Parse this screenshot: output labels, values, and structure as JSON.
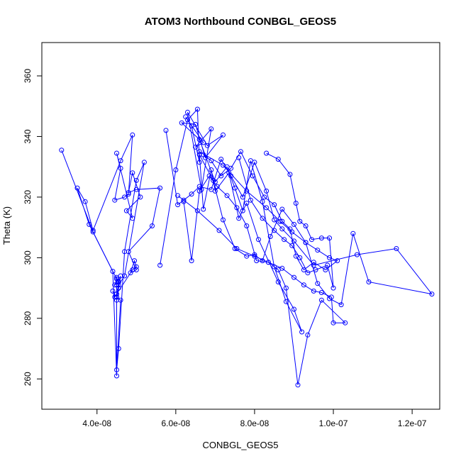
{
  "chart_data": {
    "type": "line",
    "title": "ATOM3 Northbound CONBGL_GEOS5",
    "xlabel": "CONBGL_GEOS5",
    "ylabel": "Theta (K)",
    "xlim": [
      2.6e-08,
      1.27e-07
    ],
    "ylim": [
      250,
      371
    ],
    "xticks": [
      4e-08,
      6e-08,
      8e-08,
      1e-07,
      1.2e-07
    ],
    "xtick_labels": [
      "4.0e-08",
      "6.0e-08",
      "8.0e-08",
      "1.0e-07",
      "1.2e-07"
    ],
    "yticks": [
      260,
      280,
      300,
      320,
      340,
      360
    ],
    "ytick_labels": [
      "260",
      "280",
      "300",
      "320",
      "340",
      "360"
    ],
    "series_color": "#0000ff",
    "marker": "open-circle",
    "grid": false,
    "series": [
      {
        "x": [
          3.1e-08,
          3.9e-08,
          4.5e-08,
          4.5e-08,
          4.6e-08,
          4.5e-08,
          4.55e-08,
          4.7e-08,
          5e-08,
          5.2e-08,
          4.7e-08,
          4.55e-08,
          4.5e-08,
          4.5e-08,
          4.4e-08,
          3.8e-08,
          3.5e-08,
          3.7e-08,
          3.9e-08,
          4.6e-08,
          4.9e-08,
          4.8e-08,
          4.7e-08,
          4.45e-08,
          4.6e-08,
          4.5e-08,
          4.9e-08,
          4.75e-08,
          5.1e-08,
          4.9e-08,
          4.8e-08,
          5e-08,
          5.6e-08,
          5.4e-08,
          4.8e-08,
          5e-08,
          4.85e-08,
          4.95e-08,
          5e-08,
          4.9e-08,
          4.5e-08,
          4.5e-08,
          4.55e-08,
          4.5e-08,
          4.45e-08,
          4.55e-08,
          4.6e-08,
          4.5e-08,
          4.5e-08,
          4.55e-08,
          4.55e-08,
          4.5e-08,
          4.45e-08,
          4.4e-08
        ],
        "y": [
          335.5,
          308.5,
          293,
          287,
          286,
          263,
          270,
          302,
          325.5,
          331.5,
          294,
          291,
          293.5,
          261,
          295.5,
          311,
          323,
          318.5,
          309,
          332,
          340.5,
          321,
          320,
          319,
          329.5,
          334.5,
          313,
          315.5,
          320,
          328,
          321.5,
          322.5,
          323,
          310.5,
          302,
          296,
          295,
          299,
          297,
          296,
          288,
          287,
          292,
          293,
          291,
          292,
          294,
          286,
          291,
          292,
          290,
          288,
          287,
          289
        ]
      },
      {
        "x": [
          5.6e-08,
          6e-08,
          6.3e-08,
          6.55e-08,
          6.6e-08,
          6.4e-08,
          6.25e-08,
          6.7e-08,
          6.5e-08,
          6.9e-08,
          6.65e-08,
          6.3e-08,
          6.8e-08,
          7.2e-08,
          6.75e-08,
          6.5e-08,
          6.15e-08,
          6.6e-08,
          7e-08,
          7.3e-08,
          7.5e-08,
          7.7e-08,
          7.9e-08,
          8.2e-08,
          8.5e-08,
          8.8e-08,
          9.2e-08,
          9e-08,
          8.6e-08,
          8.1e-08,
          7.8e-08,
          7.6e-08,
          7.35e-08,
          7e-08,
          6.9e-08,
          6.7e-08,
          6.6e-08,
          6.95e-08,
          7.2e-08,
          7.5e-08,
          7.8e-08,
          8e-08,
          8.2e-08,
          8.4e-08,
          8.7e-08,
          9e-08,
          9.3e-08,
          9.6e-08,
          9.9e-08,
          1.02e-07,
          1.05e-07,
          1.09e-07,
          1.25e-07,
          1.16e-07,
          1.06e-07,
          9.5e-08,
          9e-08,
          8.7e-08,
          8.5e-08,
          8.3e-08,
          8e-08,
          7.7e-08,
          7.4e-08,
          7.15e-08,
          6.9e-08,
          6.6e-08,
          6.4e-08,
          6.2e-08,
          6.05e-08,
          5.75e-08
        ],
        "y": [
          297.5,
          329,
          345.5,
          349,
          331.5,
          343.5,
          346.5,
          338,
          336.5,
          342.5,
          322.5,
          348,
          337,
          340.5,
          333,
          344,
          344.5,
          339,
          325,
          330,
          323,
          315.5,
          332,
          318.5,
          297,
          285.5,
          275.5,
          283,
          292,
          306,
          318,
          313,
          328,
          322,
          329,
          316,
          334,
          325.5,
          312.5,
          303,
          300.5,
          301,
          299,
          307,
          316,
          311,
          305,
          291.5,
          286.5,
          284.5,
          308,
          292,
          288,
          303,
          301,
          297.5,
          305.5,
          309.5,
          312.5,
          322,
          331.5,
          320,
          327,
          332.5,
          322.5,
          323.5,
          321,
          319,
          317.5,
          342
        ]
      },
      {
        "x": [
          6.05e-08,
          6.55e-08,
          7.1e-08,
          7.55e-08,
          8e-08,
          8.35e-08,
          8.7e-08,
          9e-08,
          9.25e-08,
          9.5e-08,
          9.7e-08,
          9.95e-08,
          1e-07,
          1.03e-07,
          9.7e-08,
          9.35e-08,
          9.1e-08,
          8.8e-08,
          8.6e-08,
          8.35e-08,
          8.05e-08,
          7.8e-08,
          7.55e-08,
          7.3e-08,
          7.05e-08,
          6.85e-08,
          6.6e-08,
          6.4e-08,
          6.2e-08
        ],
        "y": [
          320.5,
          315.5,
          309,
          303,
          300.5,
          298.5,
          296.5,
          293.5,
          291,
          289,
          288.5,
          287,
          278.5,
          278.5,
          286,
          274.5,
          258,
          290,
          296,
          298.5,
          299,
          310.5,
          316.5,
          320.5,
          323.5,
          327,
          322,
          299,
          318.5
        ]
      },
      {
        "x": [
          6.6e-08,
          7.2e-08,
          7.8e-08,
          8.3e-08,
          8.65e-08,
          8.95e-08,
          9.3e-08,
          9.6e-08,
          9.9e-08,
          1.01e-07,
          9.8e-08,
          9.5e-08,
          9.25e-08,
          9.05e-08,
          8.9e-08,
          8.7e-08,
          8.5e-08,
          8.25e-08,
          7.95e-08,
          7.65e-08,
          7.4e-08,
          7.15e-08,
          6.9e-08,
          6.7e-08
        ],
        "y": [
          335,
          330.5,
          322,
          316.5,
          312,
          308.5,
          305,
          302.5,
          300,
          299,
          296,
          298.5,
          296,
          300.5,
          309.5,
          312,
          317.5,
          320,
          327,
          335,
          329.5,
          327,
          332,
          334
        ]
      },
      {
        "x": [
          8.3e-08,
          8.6e-08,
          8.9e-08,
          9.05e-08,
          9.15e-08,
          9.3e-08,
          9.45e-08,
          9.7e-08,
          9.9e-08,
          1e-07,
          9.85e-08,
          9.55e-08,
          9.35e-08,
          9.15e-08,
          8.95e-08,
          8.75e-08,
          8.5e-08,
          8.2e-08,
          7.9e-08,
          7.6e-08
        ],
        "y": [
          334.5,
          332.5,
          327.5,
          318,
          312,
          310.5,
          306,
          306.5,
          306.5,
          290,
          297.5,
          296,
          295,
          300,
          304,
          306,
          309,
          313,
          319,
          333
        ]
      }
    ]
  }
}
